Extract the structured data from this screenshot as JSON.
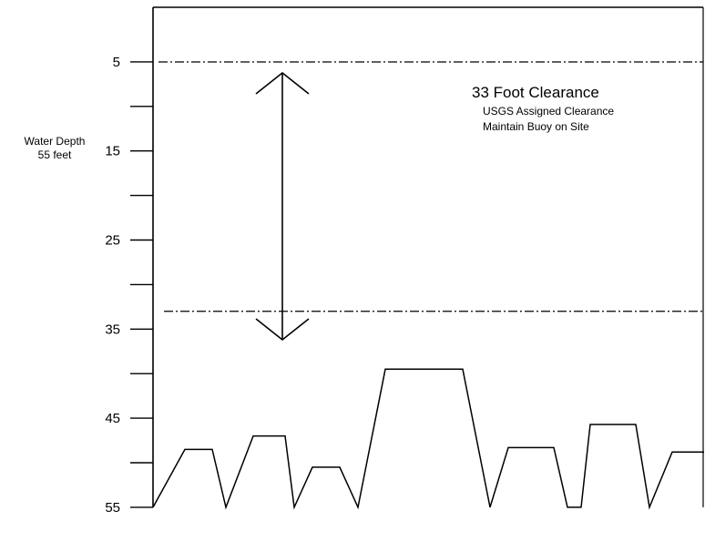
{
  "side_label": {
    "title": "Water Depth",
    "value": "55 feet"
  },
  "annotation": {
    "headline": "33 Foot Clearance",
    "line1": "USGS Assigned Clearance",
    "line2": "Maintain Buoy on Site"
  },
  "depth_axis": {
    "min": 0,
    "max": 55,
    "labeled_ticks": [
      5,
      15,
      25,
      35,
      45,
      55
    ],
    "minor_ticks": [
      10,
      20,
      30,
      40,
      50
    ],
    "unit": "feet"
  },
  "clearance": {
    "surface_line_depth": 0,
    "clearance_line_depth": 33
  },
  "seabed_profile": [
    [
      0,
      55
    ],
    [
      35,
      48.5
    ],
    [
      65,
      48.5
    ],
    [
      80,
      55
    ],
    [
      110,
      47
    ],
    [
      145,
      47
    ],
    [
      155,
      55
    ],
    [
      175,
      50.5
    ],
    [
      205,
      50.5
    ],
    [
      225,
      55
    ],
    [
      255,
      39.5
    ],
    [
      340,
      39.5
    ],
    [
      370,
      55
    ],
    [
      390,
      48.3
    ],
    [
      440,
      48.3
    ],
    [
      455,
      55
    ],
    [
      470,
      55
    ],
    [
      480,
      45.7
    ],
    [
      530,
      45.7
    ],
    [
      545,
      55
    ],
    [
      570,
      48.8
    ],
    [
      605,
      48.8
    ]
  ]
}
